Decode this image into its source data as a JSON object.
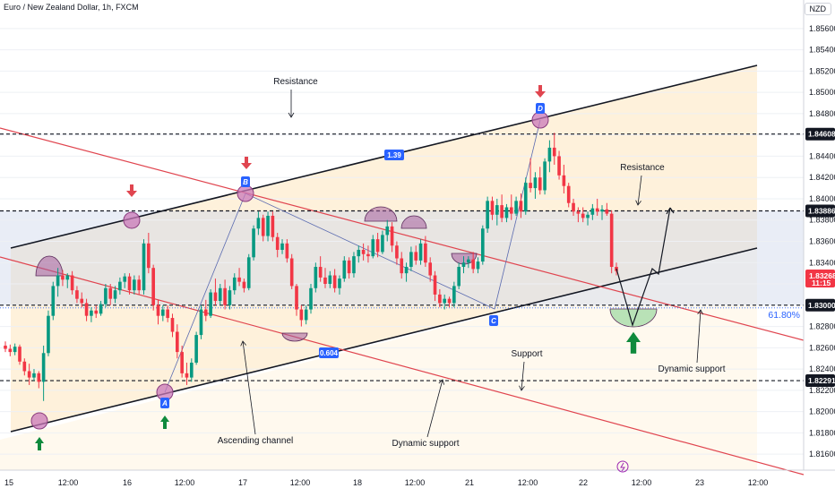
{
  "header": {
    "title": "Euro / New Zealand Dollar, 1h, FXCM",
    "currency": "NZD"
  },
  "chart_data": {
    "type": "candlestick",
    "title": "Euro / New Zealand Dollar, 1h, FXCM",
    "ylim": [
      1.8145,
      1.8575
    ],
    "yticks": [
      "1.85600",
      "1.85400",
      "1.85200",
      "1.85000",
      "1.84800",
      "1.84600",
      "1.84400",
      "1.84200",
      "1.84000",
      "1.83800",
      "1.83600",
      "1.83400",
      "1.83200",
      "1.83000",
      "1.82800",
      "1.82600",
      "1.82400",
      "1.82200",
      "1.82000",
      "1.81800",
      "1.81600"
    ],
    "xticks": [
      "15",
      "12:00",
      "16",
      "12:00",
      "17",
      "12:00",
      "18",
      "12:00",
      "21",
      "12:00",
      "22",
      "12:00",
      "23",
      "12:00"
    ],
    "colors": {
      "up": "#089981",
      "down": "#f23645",
      "channel": "#131722",
      "dynamic": "#e0454f",
      "level": "#131722"
    },
    "levels": [
      {
        "value": 1.84608,
        "label": "1.84608"
      },
      {
        "value": 1.83886,
        "label": "1.83886"
      },
      {
        "value": 1.83,
        "label": "1.83000"
      },
      {
        "value": 1.82291,
        "label": "1.82291"
      }
    ],
    "price_label": {
      "value": "1.83268",
      "countdown": "11:15"
    },
    "fib_label": "61.80%",
    "pattern_points": [
      "A",
      "B",
      "C",
      "D"
    ],
    "moves": [
      "1.39",
      "0.604"
    ],
    "annotations": [
      "Resistance",
      "Resistance",
      "Support",
      "Ascending channel",
      "Dynamic support",
      "Dynamic support"
    ],
    "candles": [
      [
        1.8262,
        1.8266,
        1.8256,
        1.8259
      ],
      [
        1.8259,
        1.8263,
        1.8252,
        1.8256
      ],
      [
        1.8256,
        1.8264,
        1.8253,
        1.8261
      ],
      [
        1.8261,
        1.8263,
        1.8244,
        1.8247
      ],
      [
        1.8247,
        1.825,
        1.8234,
        1.8238
      ],
      [
        1.8238,
        1.8245,
        1.8225,
        1.8232
      ],
      [
        1.8232,
        1.824,
        1.8229,
        1.8236
      ],
      [
        1.8236,
        1.8238,
        1.8222,
        1.8228
      ],
      [
        1.8228,
        1.8262,
        1.821,
        1.8255
      ],
      [
        1.8255,
        1.8295,
        1.8252,
        1.829
      ],
      [
        1.829,
        1.8322,
        1.8286,
        1.8318
      ],
      [
        1.8318,
        1.8335,
        1.8308,
        1.8328
      ],
      [
        1.8328,
        1.8333,
        1.8318,
        1.8324
      ],
      [
        1.8324,
        1.833,
        1.8316,
        1.8328
      ],
      [
        1.8328,
        1.8332,
        1.831,
        1.8314
      ],
      [
        1.8314,
        1.8318,
        1.8302,
        1.8306
      ],
      [
        1.8306,
        1.8312,
        1.8298,
        1.8302
      ],
      [
        1.8302,
        1.8306,
        1.8285,
        1.829
      ],
      [
        1.829,
        1.8298,
        1.8284,
        1.8295
      ],
      [
        1.8295,
        1.83,
        1.8288,
        1.8292
      ],
      [
        1.8292,
        1.8304,
        1.829,
        1.8301
      ],
      [
        1.8301,
        1.832,
        1.8298,
        1.8316
      ],
      [
        1.8316,
        1.832,
        1.83,
        1.8306
      ],
      [
        1.8306,
        1.8318,
        1.8302,
        1.8314
      ],
      [
        1.8314,
        1.8326,
        1.831,
        1.8322
      ],
      [
        1.8322,
        1.833,
        1.8316,
        1.8327
      ],
      [
        1.8327,
        1.833,
        1.831,
        1.8314
      ],
      [
        1.8314,
        1.8328,
        1.831,
        1.8324
      ],
      [
        1.8324,
        1.8328,
        1.831,
        1.8314
      ],
      [
        1.8314,
        1.8362,
        1.831,
        1.8358
      ],
      [
        1.8358,
        1.8368,
        1.833,
        1.8335
      ],
      [
        1.8335,
        1.8338,
        1.8295,
        1.83
      ],
      [
        1.83,
        1.8305,
        1.8282,
        1.829
      ],
      [
        1.829,
        1.83,
        1.8285,
        1.8296
      ],
      [
        1.8296,
        1.83,
        1.8284,
        1.8288
      ],
      [
        1.8288,
        1.8292,
        1.827,
        1.8275
      ],
      [
        1.8275,
        1.8282,
        1.825,
        1.8256
      ],
      [
        1.8256,
        1.8262,
        1.8232,
        1.8236
      ],
      [
        1.8236,
        1.8246,
        1.8225,
        1.8232
      ],
      [
        1.8232,
        1.825,
        1.8228,
        1.8246
      ],
      [
        1.8246,
        1.8275,
        1.8244,
        1.8272
      ],
      [
        1.8272,
        1.83,
        1.8268,
        1.8296
      ],
      [
        1.8296,
        1.8305,
        1.8285,
        1.829
      ],
      [
        1.829,
        1.8315,
        1.8288,
        1.8312
      ],
      [
        1.8312,
        1.8325,
        1.83,
        1.8304
      ],
      [
        1.8304,
        1.832,
        1.83,
        1.8316
      ],
      [
        1.8316,
        1.8324,
        1.8296,
        1.83
      ],
      [
        1.83,
        1.8318,
        1.8296,
        1.8314
      ],
      [
        1.8314,
        1.833,
        1.831,
        1.8326
      ],
      [
        1.8326,
        1.8335,
        1.8318,
        1.8322
      ],
      [
        1.8322,
        1.8325,
        1.8312,
        1.8316
      ],
      [
        1.8316,
        1.8348,
        1.8314,
        1.8345
      ],
      [
        1.8345,
        1.8375,
        1.8342,
        1.8372
      ],
      [
        1.8372,
        1.8388,
        1.8366,
        1.8382
      ],
      [
        1.8382,
        1.8385,
        1.836,
        1.8365
      ],
      [
        1.8365,
        1.8388,
        1.836,
        1.8384
      ],
      [
        1.8384,
        1.8388,
        1.836,
        1.8364
      ],
      [
        1.8364,
        1.8368,
        1.8345,
        1.8352
      ],
      [
        1.8352,
        1.8362,
        1.8348,
        1.8358
      ],
      [
        1.8358,
        1.8362,
        1.834,
        1.8344
      ],
      [
        1.8344,
        1.8348,
        1.8315,
        1.8318
      ],
      [
        1.8318,
        1.832,
        1.829,
        1.8296
      ],
      [
        1.8296,
        1.83,
        1.828,
        1.8286
      ],
      [
        1.8286,
        1.83,
        1.8282,
        1.8296
      ],
      [
        1.8296,
        1.832,
        1.8292,
        1.8316
      ],
      [
        1.8316,
        1.834,
        1.8312,
        1.8336
      ],
      [
        1.8336,
        1.8346,
        1.8322,
        1.8326
      ],
      [
        1.8326,
        1.8335,
        1.8316,
        1.832
      ],
      [
        1.832,
        1.8332,
        1.8316,
        1.8328
      ],
      [
        1.8328,
        1.8334,
        1.8312,
        1.8316
      ],
      [
        1.8316,
        1.8328,
        1.831,
        1.8325
      ],
      [
        1.8325,
        1.8346,
        1.8322,
        1.8342
      ],
      [
        1.8342,
        1.8345,
        1.8325,
        1.833
      ],
      [
        1.833,
        1.835,
        1.8326,
        1.8346
      ],
      [
        1.8346,
        1.8356,
        1.834,
        1.8352
      ],
      [
        1.8352,
        1.8358,
        1.8342,
        1.8348
      ],
      [
        1.8348,
        1.8356,
        1.834,
        1.8346
      ],
      [
        1.8346,
        1.8366,
        1.8344,
        1.8362
      ],
      [
        1.8362,
        1.8368,
        1.8345,
        1.835
      ],
      [
        1.835,
        1.837,
        1.8348,
        1.8366
      ],
      [
        1.8366,
        1.838,
        1.836,
        1.8374
      ],
      [
        1.8374,
        1.8378,
        1.835,
        1.8356
      ],
      [
        1.8356,
        1.836,
        1.8338,
        1.8344
      ],
      [
        1.8344,
        1.835,
        1.8325,
        1.833
      ],
      [
        1.833,
        1.834,
        1.8322,
        1.8336
      ],
      [
        1.8336,
        1.8355,
        1.8332,
        1.835
      ],
      [
        1.835,
        1.8356,
        1.8338,
        1.8342
      ],
      [
        1.8342,
        1.8362,
        1.8338,
        1.8358
      ],
      [
        1.8358,
        1.8365,
        1.8336,
        1.834
      ],
      [
        1.834,
        1.8345,
        1.8322,
        1.8328
      ],
      [
        1.8328,
        1.8332,
        1.8304,
        1.831
      ],
      [
        1.831,
        1.8315,
        1.8298,
        1.8302
      ],
      [
        1.8302,
        1.831,
        1.8296,
        1.8306
      ],
      [
        1.8306,
        1.8308,
        1.8298,
        1.8302
      ],
      [
        1.8302,
        1.8322,
        1.8298,
        1.8318
      ],
      [
        1.8318,
        1.834,
        1.8315,
        1.8336
      ],
      [
        1.8336,
        1.8346,
        1.833,
        1.834
      ],
      [
        1.834,
        1.8346,
        1.8335,
        1.8343
      ],
      [
        1.8343,
        1.835,
        1.833,
        1.8334
      ],
      [
        1.8334,
        1.8345,
        1.833,
        1.8341
      ],
      [
        1.8341,
        1.8375,
        1.8338,
        1.8372
      ],
      [
        1.8372,
        1.8402,
        1.8368,
        1.8398
      ],
      [
        1.8398,
        1.8402,
        1.838,
        1.8385
      ],
      [
        1.8385,
        1.84,
        1.8375,
        1.8394
      ],
      [
        1.8394,
        1.8404,
        1.8378,
        1.8382
      ],
      [
        1.8382,
        1.8395,
        1.8378,
        1.8392
      ],
      [
        1.8392,
        1.8404,
        1.838,
        1.8386
      ],
      [
        1.8386,
        1.8402,
        1.8384,
        1.8398
      ],
      [
        1.8398,
        1.8405,
        1.8382,
        1.8388
      ],
      [
        1.8388,
        1.842,
        1.8385,
        1.8415
      ],
      [
        1.8415,
        1.8438,
        1.8406,
        1.841
      ],
      [
        1.841,
        1.8425,
        1.84,
        1.842
      ],
      [
        1.842,
        1.843,
        1.8404,
        1.8408
      ],
      [
        1.8408,
        1.8438,
        1.8404,
        1.8435
      ],
      [
        1.8435,
        1.8455,
        1.8425,
        1.8448
      ],
      [
        1.8448,
        1.8462,
        1.8432,
        1.844
      ],
      [
        1.844,
        1.8445,
        1.8418,
        1.8422
      ],
      [
        1.8422,
        1.8432,
        1.8405,
        1.8412
      ],
      [
        1.8412,
        1.8415,
        1.8392,
        1.8396
      ],
      [
        1.8396,
        1.84,
        1.8384,
        1.8388
      ],
      [
        1.8388,
        1.8392,
        1.8378,
        1.8386
      ],
      [
        1.8386,
        1.8392,
        1.8378,
        1.8382
      ],
      [
        1.8382,
        1.8388,
        1.8375,
        1.8385
      ],
      [
        1.8385,
        1.8395,
        1.838,
        1.8391
      ],
      [
        1.8391,
        1.84,
        1.8384,
        1.8388
      ],
      [
        1.8388,
        1.8394,
        1.838,
        1.839
      ],
      [
        1.839,
        1.8396,
        1.8384,
        1.8386
      ],
      [
        1.8386,
        1.8389,
        1.833,
        1.8336
      ],
      [
        1.8336,
        1.834,
        1.8328,
        1.8332
      ]
    ]
  }
}
